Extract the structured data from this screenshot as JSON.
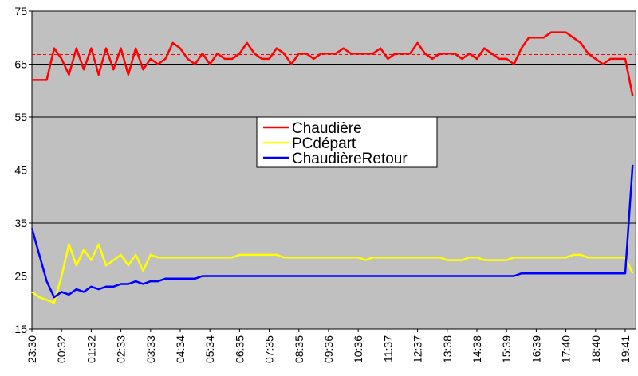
{
  "chart_data": {
    "type": "line",
    "categories": [
      "23:30",
      null,
      null,
      null,
      "00:32",
      null,
      null,
      null,
      "01:32",
      null,
      null,
      null,
      "02:33",
      null,
      null,
      null,
      "03:33",
      null,
      null,
      null,
      "04:34",
      null,
      null,
      null,
      "05:34",
      null,
      null,
      null,
      "06:35",
      null,
      null,
      null,
      "07:35",
      null,
      null,
      null,
      "08:35",
      null,
      null,
      null,
      "09:36",
      null,
      null,
      null,
      "10:36",
      null,
      null,
      null,
      "11:37",
      null,
      null,
      null,
      "12:37",
      null,
      null,
      null,
      "13:38",
      null,
      null,
      null,
      "14:38",
      null,
      null,
      null,
      "15:39",
      null,
      null,
      null,
      "16:39",
      null,
      null,
      null,
      "17:40",
      null,
      null,
      null,
      "18:40",
      null,
      null,
      null,
      "19:41",
      null
    ],
    "series": [
      {
        "name": "Chaudière",
        "color": "#ff0000",
        "values": [
          62,
          62,
          62,
          68,
          66,
          63,
          68,
          64,
          68,
          63,
          68,
          64,
          68,
          63,
          68,
          64,
          66,
          65,
          66,
          69,
          68,
          66,
          65,
          67,
          65,
          67,
          66,
          66,
          67,
          69,
          67,
          66,
          66,
          68,
          67,
          65,
          67,
          67,
          66,
          67,
          67,
          67,
          68,
          67,
          67,
          67,
          67,
          68,
          66,
          67,
          67,
          67,
          69,
          67,
          66,
          67,
          67,
          67,
          66,
          67,
          66,
          68,
          67,
          66,
          66,
          65,
          68,
          70,
          70,
          70,
          71,
          71,
          71,
          70,
          69,
          67,
          66,
          65,
          66,
          66,
          66,
          59
        ]
      },
      {
        "name": "PCdépart",
        "color": "#ffff00",
        "values": [
          22,
          21,
          20.5,
          20,
          25,
          31,
          27,
          30,
          28,
          31,
          27,
          28,
          29,
          27,
          29,
          26,
          29,
          28.5,
          28.5,
          28.5,
          28.5,
          28.5,
          28.5,
          28.5,
          28.5,
          28.5,
          28.5,
          28.5,
          29,
          29,
          29,
          29,
          29,
          29,
          28.5,
          28.5,
          28.5,
          28.5,
          28.5,
          28.5,
          28.5,
          28.5,
          28.5,
          28.5,
          28.5,
          28,
          28.5,
          28.5,
          28.5,
          28.5,
          28.5,
          28.5,
          28.5,
          28.5,
          28.5,
          28.5,
          28,
          28,
          28,
          28.5,
          28.5,
          28,
          28,
          28,
          28,
          28.5,
          28.5,
          28.5,
          28.5,
          28.5,
          28.5,
          28.5,
          28.5,
          29,
          29,
          28.5,
          28.5,
          28.5,
          28.5,
          28.5,
          28.5,
          25.5
        ]
      },
      {
        "name": "ChaudièreRetour",
        "color": "#0000ff",
        "values": [
          34,
          29,
          24,
          21,
          22,
          21.5,
          22.5,
          22,
          23,
          22.5,
          23,
          23,
          23.5,
          23.5,
          24,
          23.5,
          24,
          24,
          24.5,
          24.5,
          24.5,
          24.5,
          24.5,
          25,
          25,
          25,
          25,
          25,
          25,
          25,
          25,
          25,
          25,
          25,
          25,
          25,
          25,
          25,
          25,
          25,
          25,
          25,
          25,
          25,
          25,
          25,
          25,
          25,
          25,
          25,
          25,
          25,
          25,
          25,
          25,
          25,
          25,
          25,
          25,
          25,
          25,
          25,
          25,
          25,
          25,
          25,
          25.5,
          25.5,
          25.5,
          25.5,
          25.5,
          25.5,
          25.5,
          25.5,
          25.5,
          25.5,
          25.5,
          25.5,
          25.5,
          25.5,
          25.5,
          46
        ]
      }
    ],
    "ylim": [
      15,
      75
    ],
    "yticks": [
      15,
      25,
      35,
      45,
      55,
      65,
      75
    ],
    "grid": true,
    "background": "#c0c0c0",
    "legend": "center",
    "reference_line": {
      "value": 66.8,
      "color": "#ff0000",
      "style": "dashed"
    }
  }
}
